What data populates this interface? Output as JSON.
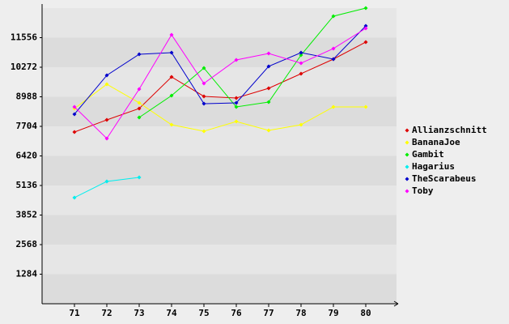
{
  "chart_data": {
    "type": "line",
    "x": [
      71,
      72,
      73,
      74,
      75,
      76,
      77,
      78,
      79,
      80
    ],
    "xlim": [
      70,
      81
    ],
    "ylim": [
      0,
      12840
    ],
    "yticks": [
      1284,
      2568,
      3852,
      5136,
      6420,
      7704,
      8988,
      10272,
      11556
    ],
    "grid": true,
    "legend": "right",
    "series": [
      {
        "name": "Allianzschnitt",
        "color": "#dd0000",
        "values": [
          7458,
          7986,
          8478,
          9850,
          9006,
          8936,
          9358,
          9991,
          10624,
          11363
        ]
      },
      {
        "name": "BananaJoe",
        "color": "#ffff00",
        "values": [
          8478,
          9534,
          8725,
          7775,
          7493,
          7916,
          7529,
          7775,
          8549,
          8549
        ]
      },
      {
        "name": "Gambit",
        "color": "#00ee00",
        "values": [
          null,
          null,
          8091,
          9041,
          10237,
          8549,
          8760,
          10800,
          12489,
          12841
        ]
      },
      {
        "name": "Hagarius",
        "color": "#00eeee",
        "values": [
          4609,
          5312,
          5488,
          null,
          null,
          null,
          null,
          null,
          null,
          null
        ]
      },
      {
        "name": "TheScarabeus",
        "color": "#0000cc",
        "values": [
          8232,
          9921,
          10835,
          10906,
          8689,
          8725,
          10308,
          10906,
          10624,
          12067
        ]
      },
      {
        "name": "Toby",
        "color": "#ff00ff",
        "values": [
          8549,
          7177,
          9323,
          11680,
          9569,
          10589,
          10871,
          10448,
          11082,
          11961
        ]
      }
    ]
  }
}
